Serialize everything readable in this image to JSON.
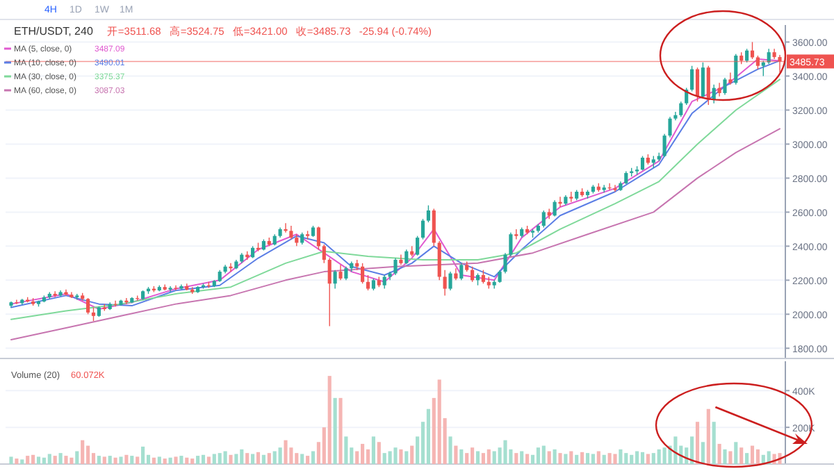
{
  "chart_data": [
    {
      "type": "candlestick",
      "title": "ETH/USDT, 240",
      "annotations": [
        "4H",
        "1D",
        "1W",
        "1M",
        "开=3511.68",
        "高=3524.75",
        "低=3421.00",
        "收=3485.73",
        "-25.94 (-0.74%)",
        "3487.09",
        "3490.01",
        "3375.37",
        "3087.03"
      ],
      "categories": [
        null,
        null,
        null,
        null,
        null,
        null,
        null,
        null,
        null,
        null,
        null,
        null,
        null,
        null,
        null,
        null,
        null,
        null,
        null,
        null,
        null,
        null,
        null,
        null,
        null,
        null,
        null,
        null,
        null,
        null,
        null,
        null,
        null,
        null,
        null,
        null,
        null,
        null,
        null,
        null,
        null,
        null,
        null,
        null,
        null,
        null,
        null,
        null,
        null,
        null,
        null,
        null,
        null,
        null,
        null,
        null,
        null,
        null,
        null,
        null,
        null,
        null,
        null,
        null,
        null,
        null,
        null,
        null,
        null,
        null,
        null,
        null,
        null,
        null,
        null,
        null,
        null,
        null,
        null,
        null,
        null,
        null,
        null,
        null,
        null,
        null,
        null,
        null,
        null,
        null,
        null,
        null,
        null,
        null,
        null,
        null,
        null,
        null,
        null,
        null,
        null,
        null,
        null,
        null,
        null,
        null,
        null,
        null,
        null,
        null,
        null,
        null,
        null,
        null,
        null,
        null,
        null,
        null,
        null,
        null,
        null,
        null,
        null,
        null,
        null,
        null,
        null,
        null,
        null,
        null,
        null,
        null,
        null,
        null,
        null,
        null,
        null,
        null,
        null,
        null,
        null
      ],
      "colors": [
        "#26a69a",
        "#ef5350",
        "#26a69a",
        "#ef5350",
        "#ef5350",
        "#26a69a",
        "#26a69a",
        "#26a69a",
        "#ef5350",
        "#26a69a",
        "#ef5350",
        "#ef5350",
        "#26a69a",
        "#ef5350",
        "#ef5350",
        "#ef5350",
        "#26a69a",
        "#ef5350",
        "#26a69a",
        "#ef5350",
        "#26a69a",
        "#ef5350",
        "#26a69a",
        "#ef5350",
        "#26a69a",
        "#26a69a",
        "#ef5350",
        "#26a69a",
        "#ef5350",
        "#26a69a",
        "#ef5350",
        "#26a69a",
        "#ef5350",
        "#ef5350",
        "#26a69a",
        "#26a69a",
        "#ef5350",
        "#26a69a",
        "#26a69a",
        "#26a69a",
        "#ef5350",
        "#26a69a",
        "#26a69a",
        "#ef5350",
        "#26a69a",
        "#ef5350",
        "#26a69a",
        "#ef5350",
        "#26a69a",
        "#26a69a",
        "#ef5350",
        "#ef5350",
        "#ef5350",
        "#26a69a",
        "#ef5350",
        "#26a69a",
        "#ef5350",
        "#ef5350",
        "#ef5350",
        "#26a69a",
        "#ef5350",
        "#26a69a",
        "#26a69a",
        "#ef5350",
        "#ef5350",
        "#ef5350",
        "#26a69a",
        "#ef5350",
        "#26a69a",
        "#26a69a",
        "#26a69a",
        "#ef5350",
        "#26a69a",
        "#ef5350",
        "#26a69a",
        "#26a69a",
        "#26a69a",
        "#ef5350",
        "#ef5350",
        "#ef5350",
        "#26a69a",
        "#ef5350",
        "#26a69a",
        "#ef5350",
        "#ef5350",
        "#26a69a",
        "#ef5350",
        "#ef5350",
        "#26a69a",
        "#26a69a",
        "#26a69a",
        "#26a69a",
        "#ef5350",
        "#26a69a",
        "#ef5350",
        "#26a69a",
        "#26a69a",
        "#26a69a",
        "#ef5350",
        "#26a69a",
        "#ef5350",
        "#26a69a",
        "#ef5350",
        "#26a69a",
        "#ef5350",
        "#26a69a",
        "#26a69a",
        "#ef5350",
        "#26a69a",
        "#ef5350",
        "#ef5350",
        "#26a69a",
        "#26a69a",
        "#26a69a",
        "#26a69a",
        "#26a69a",
        "#ef5350",
        "#26a69a",
        "#26a69a",
        "#26a69a",
        "#26a69a",
        "#26a69a",
        "#26a69a",
        "#26a69a",
        "#26a69a",
        "#ef5350",
        "#26a69a",
        "#ef5350",
        "#26a69a",
        "#ef5350",
        "#26a69a",
        "#ef5350",
        "#26a69a",
        "#ef5350",
        "#26a69a",
        "#ef5350",
        "#ef5350",
        "#26a69a",
        "#26a69a",
        "#ef5350",
        "#ef5350"
      ],
      "ohlc": [
        [
          2050,
          2075,
          2040,
          2070
        ],
        [
          2070,
          2085,
          2060,
          2065
        ],
        [
          2065,
          2090,
          2055,
          2085
        ],
        [
          2085,
          2100,
          2070,
          2075
        ],
        [
          2075,
          2095,
          2050,
          2060
        ],
        [
          2060,
          2080,
          2045,
          2075
        ],
        [
          2075,
          2110,
          2070,
          2100
        ],
        [
          2100,
          2130,
          2090,
          2120
        ],
        [
          2120,
          2135,
          2100,
          2110
        ],
        [
          2110,
          2140,
          2105,
          2130
        ],
        [
          2130,
          2145,
          2110,
          2115
        ],
        [
          2115,
          2130,
          2095,
          2100
        ],
        [
          2100,
          2120,
          2085,
          2110
        ],
        [
          2110,
          2125,
          2080,
          2090
        ],
        [
          2090,
          2095,
          2000,
          2010
        ],
        [
          2010,
          2040,
          1960,
          1990
        ],
        [
          1990,
          2045,
          1985,
          2040
        ],
        [
          2040,
          2060,
          2020,
          2030
        ],
        [
          2030,
          2070,
          2025,
          2060
        ],
        [
          2060,
          2080,
          2045,
          2055
        ],
        [
          2055,
          2085,
          2050,
          2080
        ],
        [
          2080,
          2095,
          2060,
          2070
        ],
        [
          2070,
          2100,
          2065,
          2095
        ],
        [
          2095,
          2110,
          2080,
          2090
        ],
        [
          2090,
          2140,
          2085,
          2135
        ],
        [
          2135,
          2160,
          2120,
          2150
        ],
        [
          2150,
          2165,
          2130,
          2140
        ],
        [
          2140,
          2170,
          2135,
          2160
        ],
        [
          2160,
          2175,
          2140,
          2145
        ],
        [
          2145,
          2165,
          2130,
          2155
        ],
        [
          2155,
          2170,
          2140,
          2150
        ],
        [
          2150,
          2175,
          2145,
          2165
        ],
        [
          2165,
          2180,
          2140,
          2145
        ],
        [
          2145,
          2160,
          2120,
          2130
        ],
        [
          2130,
          2165,
          2125,
          2160
        ],
        [
          2160,
          2180,
          2150,
          2170
        ],
        [
          2170,
          2190,
          2155,
          2165
        ],
        [
          2165,
          2200,
          2160,
          2195
        ],
        [
          2195,
          2260,
          2190,
          2250
        ],
        [
          2250,
          2290,
          2240,
          2280
        ],
        [
          2280,
          2300,
          2250,
          2270
        ],
        [
          2270,
          2320,
          2265,
          2310
        ],
        [
          2310,
          2360,
          2300,
          2350
        ],
        [
          2350,
          2370,
          2320,
          2335
        ],
        [
          2335,
          2400,
          2330,
          2390
        ],
        [
          2390,
          2420,
          2370,
          2380
        ],
        [
          2380,
          2440,
          2375,
          2430
        ],
        [
          2430,
          2450,
          2400,
          2410
        ],
        [
          2410,
          2470,
          2405,
          2460
        ],
        [
          2460,
          2510,
          2450,
          2500
        ],
        [
          2500,
          2535,
          2480,
          2490
        ],
        [
          2490,
          2520,
          2440,
          2450
        ],
        [
          2450,
          2470,
          2400,
          2420
        ],
        [
          2420,
          2480,
          2410,
          2470
        ],
        [
          2470,
          2490,
          2440,
          2460
        ],
        [
          2460,
          2520,
          2455,
          2510
        ],
        [
          2510,
          2515,
          2380,
          2400
        ],
        [
          2400,
          2410,
          2300,
          2320
        ],
        [
          2320,
          2330,
          1930,
          2180
        ],
        [
          2180,
          2260,
          2150,
          2250
        ],
        [
          2250,
          2290,
          2200,
          2210
        ],
        [
          2210,
          2280,
          2200,
          2270
        ],
        [
          2270,
          2310,
          2250,
          2300
        ],
        [
          2300,
          2320,
          2260,
          2280
        ],
        [
          2280,
          2300,
          2180,
          2190
        ],
        [
          2190,
          2230,
          2140,
          2150
        ],
        [
          2150,
          2210,
          2140,
          2200
        ],
        [
          2200,
          2220,
          2160,
          2170
        ],
        [
          2170,
          2230,
          2150,
          2220
        ],
        [
          2220,
          2250,
          2200,
          2240
        ],
        [
          2240,
          2330,
          2230,
          2320
        ],
        [
          2320,
          2350,
          2290,
          2300
        ],
        [
          2300,
          2380,
          2295,
          2370
        ],
        [
          2370,
          2400,
          2340,
          2350
        ],
        [
          2350,
          2460,
          2345,
          2450
        ],
        [
          2450,
          2560,
          2440,
          2550
        ],
        [
          2550,
          2640,
          2540,
          2610
        ],
        [
          2610,
          2620,
          2400,
          2420
        ],
        [
          2420,
          2430,
          2200,
          2220
        ],
        [
          2220,
          2260,
          2110,
          2150
        ],
        [
          2150,
          2250,
          2140,
          2240
        ],
        [
          2240,
          2270,
          2200,
          2210
        ],
        [
          2210,
          2300,
          2200,
          2290
        ],
        [
          2290,
          2310,
          2250,
          2260
        ],
        [
          2260,
          2280,
          2190,
          2200
        ],
        [
          2200,
          2240,
          2170,
          2230
        ],
        [
          2230,
          2260,
          2180,
          2190
        ],
        [
          2190,
          2220,
          2150,
          2170
        ],
        [
          2170,
          2200,
          2150,
          2190
        ],
        [
          2190,
          2260,
          2185,
          2250
        ],
        [
          2250,
          2360,
          2240,
          2350
        ],
        [
          2350,
          2480,
          2340,
          2470
        ],
        [
          2470,
          2500,
          2440,
          2460
        ],
        [
          2460,
          2510,
          2450,
          2500
        ],
        [
          2500,
          2520,
          2470,
          2480
        ],
        [
          2480,
          2500,
          2450,
          2490
        ],
        [
          2490,
          2530,
          2480,
          2520
        ],
        [
          2520,
          2610,
          2510,
          2600
        ],
        [
          2600,
          2620,
          2560,
          2580
        ],
        [
          2580,
          2670,
          2575,
          2660
        ],
        [
          2660,
          2690,
          2630,
          2650
        ],
        [
          2650,
          2700,
          2640,
          2690
        ],
        [
          2690,
          2720,
          2660,
          2680
        ],
        [
          2680,
          2730,
          2670,
          2720
        ],
        [
          2720,
          2740,
          2690,
          2700
        ],
        [
          2700,
          2730,
          2680,
          2720
        ],
        [
          2720,
          2760,
          2710,
          2750
        ],
        [
          2750,
          2770,
          2720,
          2730
        ],
        [
          2730,
          2760,
          2715,
          2745
        ],
        [
          2745,
          2770,
          2730,
          2740
        ],
        [
          2740,
          2760,
          2720,
          2730
        ],
        [
          2730,
          2780,
          2725,
          2770
        ],
        [
          2770,
          2840,
          2765,
          2830
        ],
        [
          2830,
          2860,
          2810,
          2840
        ],
        [
          2840,
          2870,
          2820,
          2850
        ],
        [
          2850,
          2930,
          2845,
          2920
        ],
        [
          2920,
          2940,
          2880,
          2890
        ],
        [
          2890,
          2930,
          2860,
          2910
        ],
        [
          2910,
          2950,
          2900,
          2930
        ],
        [
          2930,
          3060,
          2925,
          3050
        ],
        [
          3050,
          3160,
          3040,
          3150
        ],
        [
          3150,
          3190,
          3140,
          3170
        ],
        [
          3170,
          3250,
          3160,
          3240
        ],
        [
          3240,
          3330,
          3230,
          3320
        ],
        [
          3320,
          3460,
          3310,
          3440
        ],
        [
          3440,
          3450,
          3250,
          3280
        ],
        [
          3280,
          3480,
          3270,
          3450
        ],
        [
          3450,
          3460,
          3230,
          3260
        ],
        [
          3260,
          3350,
          3240,
          3330
        ],
        [
          3330,
          3360,
          3280,
          3300
        ],
        [
          3300,
          3390,
          3290,
          3380
        ],
        [
          3380,
          3420,
          3350,
          3360
        ],
        [
          3360,
          3530,
          3350,
          3520
        ],
        [
          3520,
          3540,
          3470,
          3490
        ],
        [
          3490,
          3560,
          3480,
          3550
        ],
        [
          3550,
          3600,
          3500,
          3510
        ],
        [
          3510,
          3520,
          3440,
          3460
        ],
        [
          3460,
          3490,
          3400,
          3480
        ],
        [
          3480,
          3560,
          3470,
          3540
        ],
        [
          3540,
          3560,
          3500,
          3511.67
        ],
        [
          3511.68,
          3524.75,
          3421.0,
          3485.73
        ]
      ],
      "series": [
        {
          "name": "MA (5, close, 0)",
          "type": "line",
          "color": "#e05ad0",
          "values": [
            2060,
            null,
            null,
            null,
            null,
            null,
            null,
            null,
            null,
            null,
            2120,
            null,
            null,
            null,
            null,
            null,
            2030,
            null,
            null,
            null,
            null,
            null,
            2070,
            null,
            null,
            null,
            null,
            null,
            null,
            null,
            2150,
            null,
            null,
            null,
            null,
            null,
            null,
            null,
            2200,
            null,
            null,
            null,
            null,
            null,
            null,
            2380,
            null,
            null,
            null,
            null,
            null,
            null,
            2470,
            null,
            null,
            null,
            null,
            2360,
            null,
            null,
            null,
            null,
            2250,
            null,
            null,
            null,
            null,
            null,
            2190,
            null,
            null,
            null,
            null,
            2330,
            null,
            null,
            null,
            2500,
            null,
            null,
            null,
            null,
            2230,
            null,
            null,
            null,
            null,
            null,
            2200,
            null,
            null,
            null,
            null,
            2450,
            null,
            null,
            null,
            null,
            null,
            null,
            2630,
            null,
            null,
            null,
            null,
            null,
            null,
            null,
            null,
            null,
            2740,
            null,
            null,
            null,
            null,
            null,
            null,
            null,
            2900,
            null,
            null,
            null,
            null,
            null,
            3250,
            null,
            null,
            null,
            null,
            null,
            3340,
            null,
            null,
            null,
            null,
            null,
            3500,
            null,
            null,
            null,
            3490
          ]
        },
        {
          "name": "MA (10, close, 0)",
          "type": "line",
          "color": "#5b7ee5",
          "values": [
            2040,
            null,
            null,
            null,
            null,
            null,
            null,
            null,
            null,
            null,
            2110,
            null,
            null,
            null,
            null,
            null,
            2060,
            null,
            null,
            null,
            null,
            null,
            2050,
            null,
            null,
            null,
            null,
            null,
            null,
            null,
            2140,
            null,
            null,
            null,
            null,
            null,
            null,
            null,
            2170,
            null,
            null,
            null,
            null,
            null,
            null,
            2330,
            null,
            null,
            null,
            null,
            null,
            null,
            2460,
            null,
            null,
            null,
            null,
            2420,
            null,
            null,
            null,
            null,
            2280,
            null,
            null,
            null,
            null,
            null,
            2230,
            null,
            null,
            null,
            null,
            2300,
            null,
            null,
            null,
            2400,
            null,
            null,
            null,
            null,
            2300,
            null,
            null,
            null,
            null,
            null,
            2220,
            null,
            null,
            null,
            null,
            2380,
            null,
            null,
            null,
            null,
            null,
            null,
            2580,
            null,
            null,
            null,
            null,
            null,
            null,
            null,
            null,
            null,
            2720,
            null,
            null,
            null,
            null,
            null,
            null,
            null,
            2880,
            null,
            null,
            null,
            null,
            null,
            3180,
            null,
            null,
            null,
            null,
            null,
            3340,
            null,
            null,
            null,
            null,
            null,
            3440,
            null,
            null,
            null,
            3490
          ]
        },
        {
          "name": "MA (30, close, 0)",
          "type": "line",
          "color": "#7fd99a",
          "values": [
            1970,
            null,
            null,
            null,
            null,
            null,
            null,
            null,
            null,
            null,
            2020,
            null,
            null,
            null,
            null,
            null,
            null,
            null,
            null,
            null,
            2060,
            null,
            null,
            null,
            null,
            null,
            null,
            null,
            null,
            null,
            2120,
            null,
            null,
            null,
            null,
            null,
            null,
            null,
            null,
            null,
            2160,
            null,
            null,
            null,
            null,
            null,
            null,
            null,
            null,
            null,
            2300,
            null,
            null,
            null,
            null,
            null,
            null,
            2370,
            null,
            null,
            null,
            null,
            null,
            null,
            null,
            2340,
            null,
            null,
            null,
            null,
            null,
            null,
            null,
            null,
            null,
            2320,
            null,
            null,
            null,
            null,
            null,
            null,
            null,
            null,
            null,
            2320,
            null,
            null,
            null,
            null,
            null,
            null,
            2360,
            null,
            null,
            null,
            null,
            null,
            null,
            null,
            2500,
            null,
            null,
            null,
            null,
            null,
            null,
            null,
            null,
            null,
            2650,
            null,
            null,
            null,
            null,
            null,
            null,
            null,
            2780,
            null,
            null,
            null,
            null,
            null,
            null,
            3000,
            null,
            null,
            null,
            null,
            null,
            null,
            3200,
            null,
            null,
            null,
            null,
            null,
            null,
            null,
            3380
          ]
        },
        {
          "name": "MA (60, close, 0)",
          "type": "line",
          "color": "#c775b0",
          "values": [
            1850,
            null,
            null,
            null,
            null,
            null,
            null,
            null,
            null,
            null,
            1920,
            null,
            null,
            null,
            null,
            null,
            null,
            null,
            null,
            null,
            1990,
            null,
            null,
            null,
            null,
            null,
            null,
            null,
            null,
            null,
            2060,
            null,
            null,
            null,
            null,
            null,
            null,
            null,
            null,
            null,
            2110,
            null,
            null,
            null,
            null,
            null,
            null,
            null,
            null,
            null,
            2200,
            null,
            null,
            null,
            null,
            null,
            null,
            2250,
            null,
            null,
            null,
            null,
            null,
            null,
            null,
            null,
            null,
            null,
            null,
            null,
            2280,
            null,
            null,
            null,
            null,
            null,
            null,
            null,
            null,
            null,
            null,
            null,
            null,
            null,
            null,
            2300,
            null,
            null,
            null,
            null,
            null,
            null,
            null,
            null,
            null,
            2360,
            null,
            null,
            null,
            null,
            null,
            null,
            null,
            null,
            null,
            2470,
            null,
            null,
            null,
            null,
            null,
            null,
            null,
            null,
            null,
            null,
            null,
            2600,
            null,
            null,
            null,
            null,
            null,
            null,
            null,
            2800,
            null,
            null,
            null,
            null,
            null,
            null,
            2950,
            null,
            null,
            null,
            null,
            null,
            null,
            null,
            3090
          ]
        }
      ],
      "ylim": [
        1740,
        3700
      ],
      "yticks": [
        {
          "value": 1800,
          "label": "1800.00"
        },
        {
          "value": 2000,
          "label": "2000.00"
        },
        {
          "value": 2200,
          "label": "2200.00"
        },
        {
          "value": 2400,
          "label": "2400.00"
        },
        {
          "value": 2600,
          "label": "2600.00"
        },
        {
          "value": 2800,
          "label": "2800.00"
        },
        {
          "value": 3000,
          "label": "3000.00"
        },
        {
          "value": 3200,
          "label": "3200.00"
        },
        {
          "value": 3400,
          "label": "3400.00"
        },
        {
          "value": 3600,
          "label": "3600.00"
        }
      ],
      "ref_lines": [
        {
          "axis": "y",
          "value": 3485.73,
          "label": "3485.73",
          "color": "#ef5350"
        }
      ],
      "grid": "y",
      "legend": "top left",
      "tick_labels": "y"
    },
    {
      "type": "bar",
      "title": "Volume (20)",
      "annotations": [
        "60.072K"
      ],
      "categories": [
        null,
        null,
        null,
        null,
        null,
        null,
        null,
        null,
        null,
        null,
        null,
        null,
        null,
        null,
        null,
        null,
        null,
        null,
        null,
        null,
        null,
        null,
        null,
        null,
        null,
        null,
        null,
        null,
        null,
        null,
        null,
        null,
        null,
        null,
        null,
        null,
        null,
        null,
        null,
        null,
        null,
        null,
        null,
        null,
        null,
        null,
        null,
        null,
        null,
        null,
        null,
        null,
        null,
        null,
        null,
        null,
        null,
        null,
        null,
        null,
        null,
        null,
        null,
        null,
        null,
        null,
        null,
        null,
        null,
        null,
        null,
        null,
        null,
        null,
        null,
        null,
        null,
        null,
        null,
        null,
        null,
        null,
        null,
        null,
        null,
        null,
        null,
        null,
        null,
        null,
        null,
        null,
        null,
        null,
        null,
        null,
        null,
        null,
        null,
        null,
        null,
        null,
        null,
        null,
        null,
        null,
        null,
        null,
        null,
        null,
        null,
        null,
        null,
        null,
        null,
        null,
        null,
        null,
        null,
        null,
        null,
        null,
        null,
        null,
        null,
        null,
        null,
        null,
        null,
        null,
        null,
        null,
        null,
        null,
        null,
        null,
        null,
        null,
        null,
        null,
        null
      ],
      "values": [
        40,
        30,
        25,
        45,
        50,
        40,
        35,
        55,
        45,
        60,
        45,
        35,
        70,
        130,
        100,
        60,
        45,
        40,
        45,
        35,
        40,
        50,
        45,
        40,
        95,
        50,
        35,
        40,
        30,
        35,
        40,
        45,
        35,
        30,
        45,
        50,
        40,
        55,
        60,
        70,
        50,
        55,
        80,
        60,
        55,
        65,
        50,
        60,
        70,
        90,
        130,
        90,
        60,
        55,
        45,
        70,
        120,
        200,
        480,
        360,
        360,
        150,
        90,
        70,
        110,
        80,
        150,
        120,
        60,
        70,
        90,
        80,
        70,
        100,
        150,
        230,
        300,
        360,
        460,
        250,
        150,
        100,
        80,
        60,
        90,
        70,
        60,
        80,
        70,
        90,
        130,
        80,
        60,
        70,
        55,
        50,
        90,
        100,
        70,
        80,
        60,
        55,
        70,
        50,
        65,
        60,
        55,
        70,
        50,
        60,
        55,
        80,
        60,
        50,
        70,
        65,
        55,
        60,
        80,
        90,
        100,
        150,
        100,
        90,
        150,
        230,
        120,
        300,
        230,
        110,
        80,
        70,
        120,
        90,
        60,
        100,
        80,
        50,
        70,
        55,
        60
      ],
      "colors": [
        "#a5dfd0",
        "#f5b5b3",
        "#a5dfd0",
        "#f5b5b3",
        "#f5b5b3",
        "#a5dfd0",
        "#a5dfd0",
        "#a5dfd0",
        "#f5b5b3",
        "#a5dfd0",
        "#f5b5b3",
        "#f5b5b3",
        "#a5dfd0",
        "#f5b5b3",
        "#f5b5b3",
        "#f5b5b3",
        "#a5dfd0",
        "#f5b5b3",
        "#a5dfd0",
        "#f5b5b3",
        "#a5dfd0",
        "#f5b5b3",
        "#a5dfd0",
        "#f5b5b3",
        "#a5dfd0",
        "#a5dfd0",
        "#f5b5b3",
        "#a5dfd0",
        "#f5b5b3",
        "#a5dfd0",
        "#f5b5b3",
        "#a5dfd0",
        "#f5b5b3",
        "#f5b5b3",
        "#a5dfd0",
        "#a5dfd0",
        "#f5b5b3",
        "#a5dfd0",
        "#a5dfd0",
        "#a5dfd0",
        "#f5b5b3",
        "#a5dfd0",
        "#a5dfd0",
        "#f5b5b3",
        "#a5dfd0",
        "#f5b5b3",
        "#a5dfd0",
        "#f5b5b3",
        "#a5dfd0",
        "#a5dfd0",
        "#f5b5b3",
        "#f5b5b3",
        "#f5b5b3",
        "#a5dfd0",
        "#f5b5b3",
        "#a5dfd0",
        "#f5b5b3",
        "#f5b5b3",
        "#f5b5b3",
        "#a5dfd0",
        "#f5b5b3",
        "#a5dfd0",
        "#a5dfd0",
        "#f5b5b3",
        "#f5b5b3",
        "#f5b5b3",
        "#a5dfd0",
        "#f5b5b3",
        "#a5dfd0",
        "#a5dfd0",
        "#a5dfd0",
        "#f5b5b3",
        "#a5dfd0",
        "#f5b5b3",
        "#a5dfd0",
        "#a5dfd0",
        "#a5dfd0",
        "#f5b5b3",
        "#f5b5b3",
        "#f5b5b3",
        "#a5dfd0",
        "#f5b5b3",
        "#a5dfd0",
        "#f5b5b3",
        "#f5b5b3",
        "#a5dfd0",
        "#f5b5b3",
        "#f5b5b3",
        "#a5dfd0",
        "#a5dfd0",
        "#a5dfd0",
        "#a5dfd0",
        "#f5b5b3",
        "#a5dfd0",
        "#f5b5b3",
        "#a5dfd0",
        "#a5dfd0",
        "#a5dfd0",
        "#f5b5b3",
        "#a5dfd0",
        "#f5b5b3",
        "#a5dfd0",
        "#f5b5b3",
        "#a5dfd0",
        "#f5b5b3",
        "#a5dfd0",
        "#a5dfd0",
        "#f5b5b3",
        "#a5dfd0",
        "#f5b5b3",
        "#f5b5b3",
        "#a5dfd0",
        "#a5dfd0",
        "#a5dfd0",
        "#a5dfd0",
        "#a5dfd0",
        "#f5b5b3",
        "#a5dfd0",
        "#a5dfd0",
        "#a5dfd0",
        "#a5dfd0",
        "#a5dfd0",
        "#a5dfd0",
        "#a5dfd0",
        "#a5dfd0",
        "#f5b5b3",
        "#a5dfd0",
        "#f5b5b3",
        "#a5dfd0",
        "#f5b5b3",
        "#a5dfd0",
        "#f5b5b3",
        "#a5dfd0",
        "#f5b5b3",
        "#a5dfd0",
        "#f5b5b3",
        "#f5b5b3",
        "#a5dfd0",
        "#a5dfd0",
        "#f5b5b3",
        "#f5b5b3"
      ],
      "ylim": [
        0,
        560
      ],
      "yticks": [
        {
          "value": 200,
          "label": "200K"
        },
        {
          "value": 400,
          "label": "400K"
        }
      ],
      "grid": "y",
      "tick_labels": "y"
    }
  ]
}
